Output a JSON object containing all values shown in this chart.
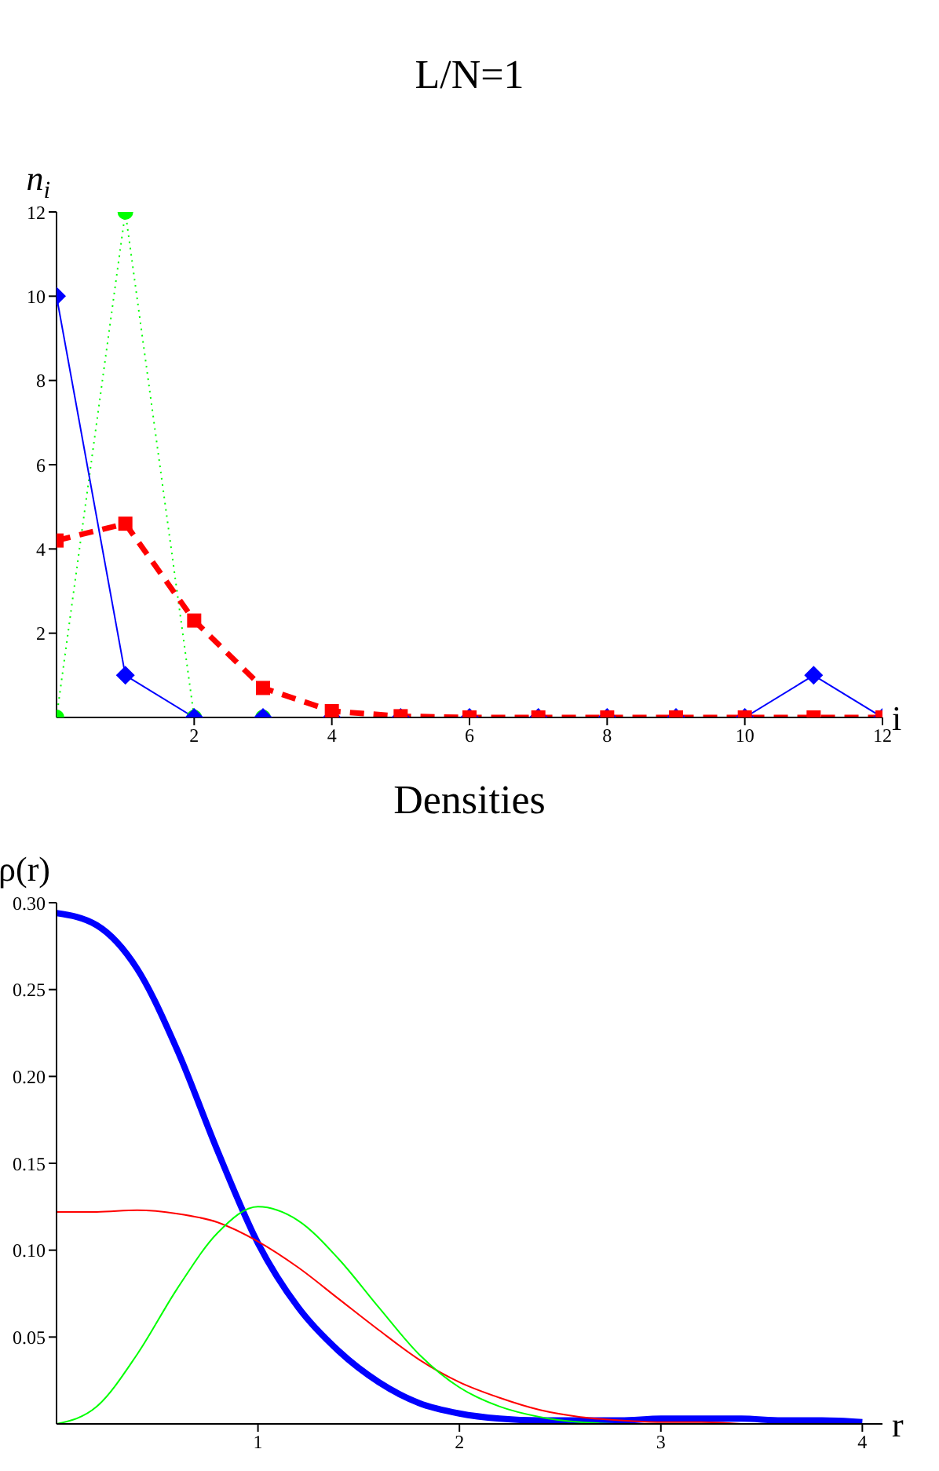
{
  "chart_data": [
    {
      "type": "line",
      "title": "L/N=1",
      "xlabel": "i",
      "ylabel": "n$_{i}$",
      "x": [
        0,
        1,
        2,
        3,
        4,
        5,
        6,
        7,
        8,
        9,
        10,
        11,
        12
      ],
      "series": [
        {
          "color": "#00ff00",
          "marker": "circle",
          "line_style": "dotted",
          "values": [
            0,
            12,
            0,
            0,
            null,
            null,
            null,
            null,
            null,
            null,
            null,
            null,
            null
          ]
        },
        {
          "color": "#0000ff",
          "marker": "diamond",
          "line_style": "solid",
          "values": [
            10,
            1,
            0,
            0,
            0,
            0,
            0,
            0,
            0,
            0,
            0,
            1,
            0
          ]
        },
        {
          "color": "#ff0000",
          "marker": "square",
          "line_style": "dashed",
          "values": [
            4.2,
            4.6,
            2.3,
            0.7,
            0.15,
            0.03,
            0,
            0,
            0,
            0,
            0,
            0,
            0
          ]
        }
      ],
      "xlim": [
        0,
        12
      ],
      "xticks": [
        2,
        4,
        6,
        8,
        10,
        12
      ],
      "ylim": [
        0,
        12
      ],
      "yticks": [
        2,
        4,
        6,
        8,
        10,
        12
      ]
    },
    {
      "type": "line",
      "title": "Densities",
      "xlabel": "r",
      "ylabel": "ρ(r)",
      "marker": "none",
      "x": [
        0,
        0.2,
        0.4,
        0.6,
        0.8,
        1,
        1.2,
        1.4,
        1.6,
        1.8,
        2,
        2.2,
        2.4,
        2.6,
        2.8,
        3,
        3.2,
        3.4,
        3.6,
        3.8,
        4
      ],
      "series": [
        {
          "color": "#0000ff",
          "values": [
            0.294,
            0.287,
            0.262,
            0.215,
            0.157,
            0.104,
            0.067,
            0.042,
            0.024,
            0.012,
            0.006,
            0.003,
            0.002,
            0.002,
            0.002,
            0.003,
            0.003,
            0.003,
            0.002,
            0.002,
            0.001
          ]
        },
        {
          "color": "#ff0000",
          "values": [
            0.122,
            0.122,
            0.123,
            0.121,
            0.116,
            0.105,
            0.09,
            0.072,
            0.054,
            0.037,
            0.024,
            0.015,
            0.008,
            0.004,
            0.002,
            0.001,
            0.001,
            0,
            null,
            null,
            null
          ]
        },
        {
          "color": "#00ff00",
          "values": [
            0,
            0.01,
            0.04,
            0.078,
            0.11,
            0.125,
            0.117,
            0.095,
            0.067,
            0.04,
            0.021,
            0.01,
            0.004,
            0.001,
            0,
            null,
            null,
            null,
            null,
            null,
            null
          ]
        }
      ],
      "xlim": [
        0,
        4.1
      ],
      "xticks": [
        1,
        2,
        3,
        4
      ],
      "ylim": [
        0,
        0.3
      ],
      "yticks": [
        0.05,
        {
          "value": 0.1,
          "label": "0.10"
        },
        0.15,
        {
          "value": 0.2,
          "label": "0.20"
        },
        0.25,
        {
          "value": 0.3,
          "label": "0.30"
        }
      ]
    }
  ]
}
